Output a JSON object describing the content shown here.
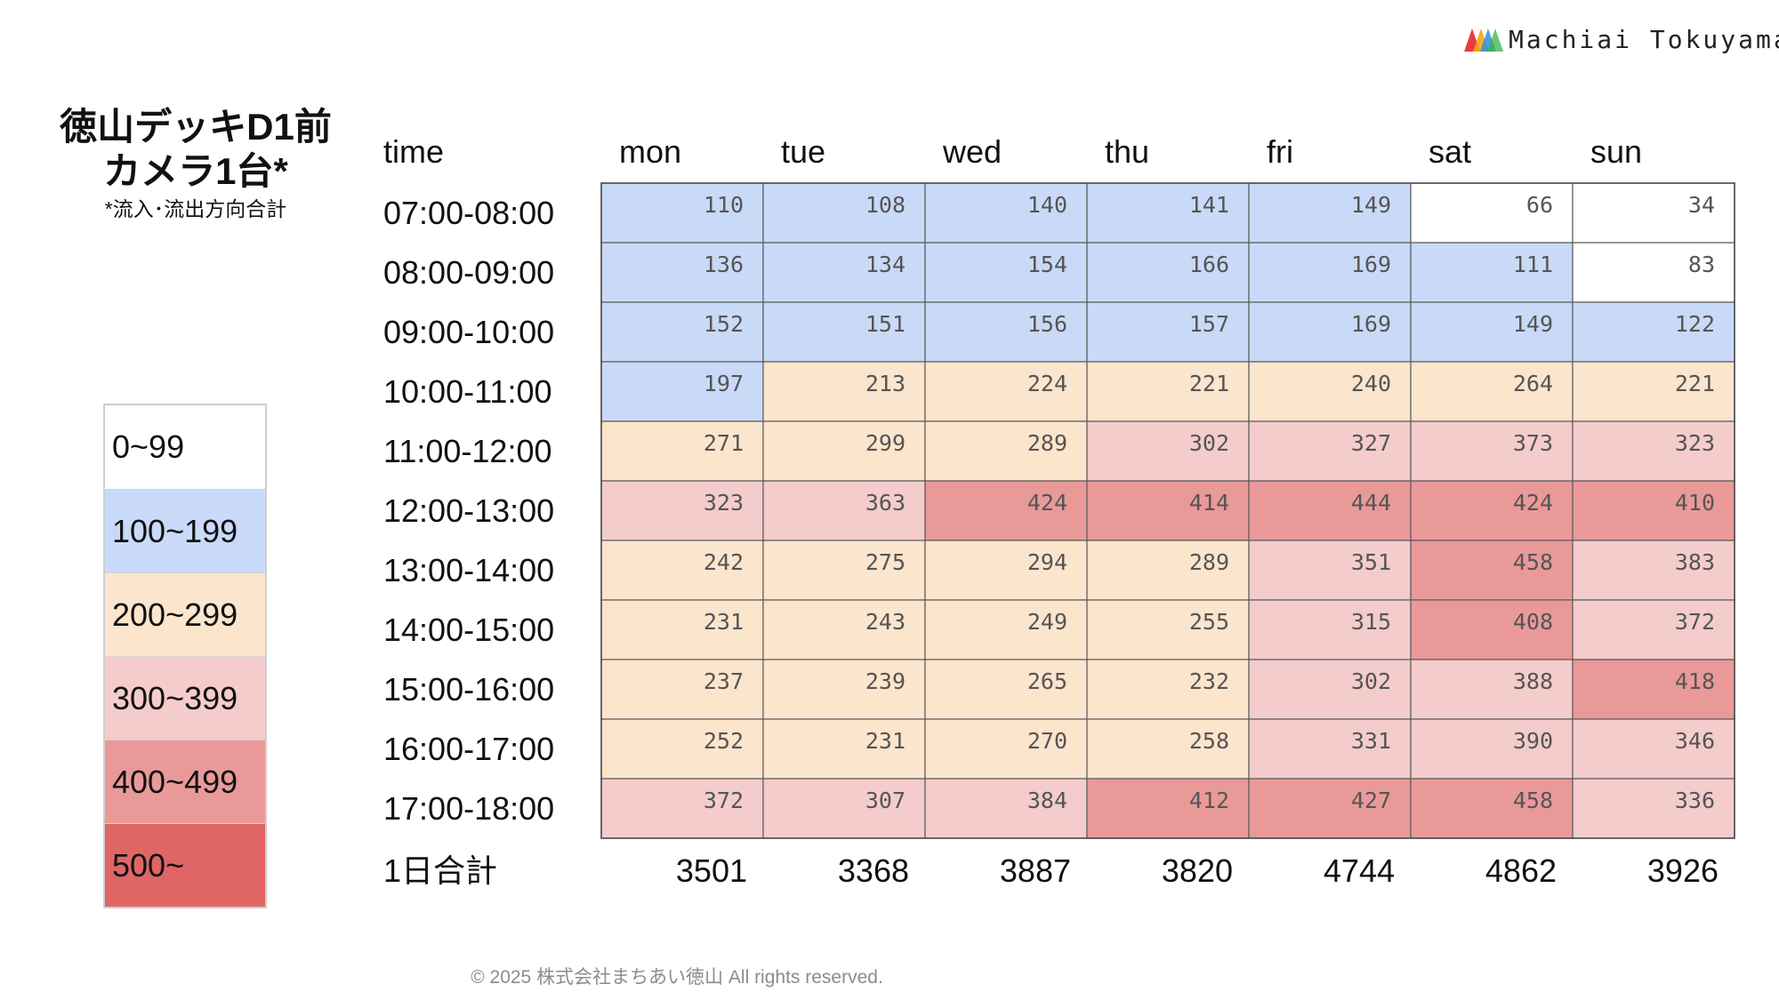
{
  "logo": {
    "text": "Machiai Tokuyama",
    "colors": [
      "#e83c3c",
      "#f2a516",
      "#2f8fd8",
      "#3bb24a"
    ]
  },
  "title": {
    "line1": "徳山デッキD1前",
    "line2": "カメラ1台*",
    "note": "*流入･流出方向合計"
  },
  "legend": [
    {
      "label": "0~99",
      "color": "#ffffff"
    },
    {
      "label": "100~199",
      "color": "#c9daf8"
    },
    {
      "label": "200~299",
      "color": "#fce5cd"
    },
    {
      "label": "300~399",
      "color": "#f4cccc"
    },
    {
      "label": "400~499",
      "color": "#ea9999"
    },
    {
      "label": "500~",
      "color": "#e06666"
    }
  ],
  "chart_data": {
    "type": "table",
    "corner_label": "time",
    "columns": [
      "mon",
      "tue",
      "wed",
      "thu",
      "fri",
      "sat",
      "sun"
    ],
    "rows": [
      "07:00-08:00",
      "08:00-09:00",
      "09:00-10:00",
      "10:00-11:00",
      "11:00-12:00",
      "12:00-13:00",
      "13:00-14:00",
      "14:00-15:00",
      "15:00-16:00",
      "16:00-17:00",
      "17:00-18:00"
    ],
    "values": [
      [
        110,
        108,
        140,
        141,
        149,
        66,
        34
      ],
      [
        136,
        134,
        154,
        166,
        169,
        111,
        83
      ],
      [
        152,
        151,
        156,
        157,
        169,
        149,
        122
      ],
      [
        197,
        213,
        224,
        221,
        240,
        264,
        221
      ],
      [
        271,
        299,
        289,
        302,
        327,
        373,
        323
      ],
      [
        323,
        363,
        424,
        414,
        444,
        424,
        410
      ],
      [
        242,
        275,
        294,
        289,
        351,
        458,
        383
      ],
      [
        231,
        243,
        249,
        255,
        315,
        408,
        372
      ],
      [
        237,
        239,
        265,
        232,
        302,
        388,
        418
      ],
      [
        252,
        231,
        270,
        258,
        331,
        390,
        346
      ],
      [
        372,
        307,
        384,
        412,
        427,
        458,
        336
      ]
    ],
    "total_label": "1日合計",
    "totals": [
      3501,
      3368,
      3887,
      3820,
      4744,
      4862,
      3926
    ]
  },
  "footer": "© 2025 株式会社まちあい徳山  All rights reserved."
}
